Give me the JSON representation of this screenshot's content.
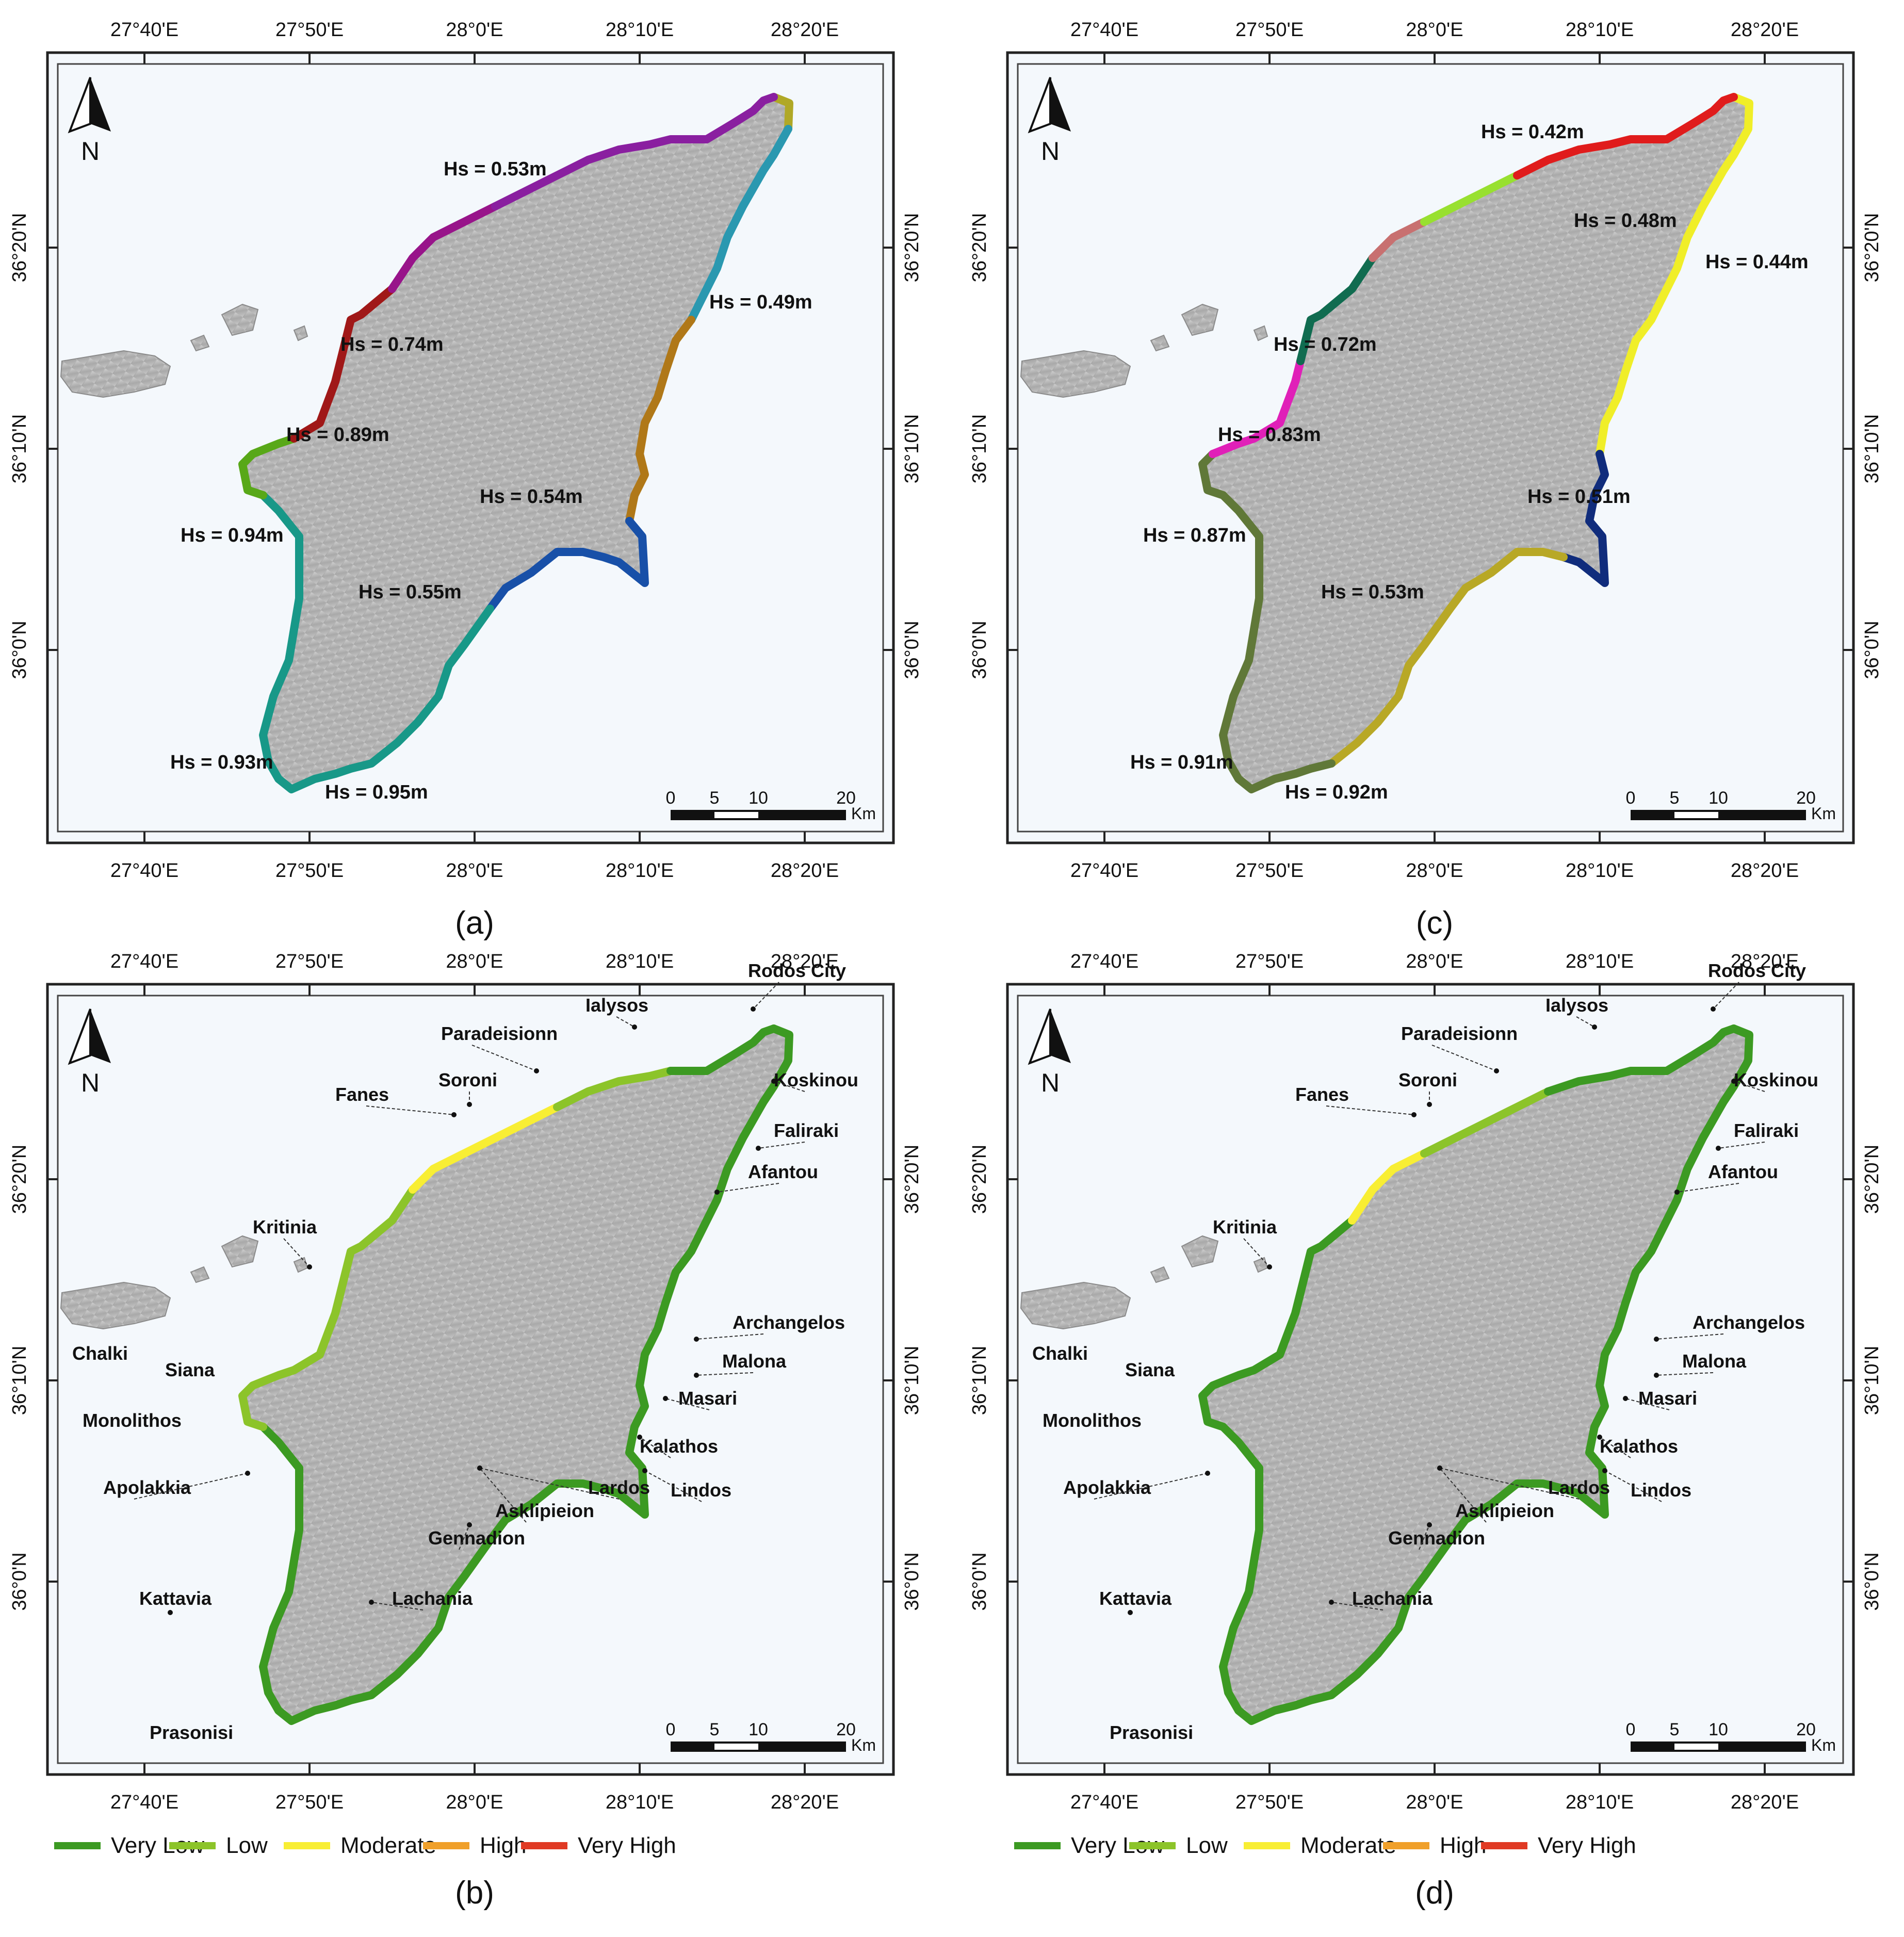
{
  "lon_ticks": [
    "27°40'E",
    "27°50'E",
    "28°0'E",
    "28°10'E",
    "28°20'E"
  ],
  "lat_ticks": [
    "36°20'N",
    "36°10'N",
    "36°0'N"
  ],
  "north_label": "N",
  "scale_bar": {
    "ticks": [
      "0",
      "5",
      "10",
      "20"
    ],
    "unit": "Km"
  },
  "panels": [
    {
      "id": "a",
      "label": "(a)",
      "hs_labels": [
        "Hs = 0.53m",
        "Hs = 0.49m",
        "Hs = 0.74m",
        "Hs = 0.89m",
        "Hs = 0.54m",
        "Hs = 0.94m",
        "Hs = 0.55m",
        "Hs = 0.93m",
        "Hs = 0.95m"
      ],
      "segment_colors": [
        "#b0a826",
        "#2a98b0",
        "#8a1fa0",
        "#98148a",
        "#b07818",
        "#a01818",
        "#1850a8",
        "#189888",
        "#58a818"
      ]
    },
    {
      "id": "c",
      "label": "(c)",
      "hs_labels": [
        "Hs = 0.42m",
        "Hs = 0.48m",
        "Hs = 0.44m",
        "Hs = 0.72m",
        "Hs = 0.83m",
        "Hs = 0.51m",
        "Hs = 0.87m",
        "Hs = 0.53m",
        "Hs = 0.91m",
        "Hs = 0.92m"
      ],
      "segment_colors": [
        "#5a1010",
        "#e01c1c",
        "#f0ee28",
        "#98e030",
        "#c87070",
        "#102c7c",
        "#106c50",
        "#b8a826",
        "#e020b8",
        "#607838"
      ]
    },
    {
      "id": "b",
      "label": "(b)",
      "places": [
        "Rodos City",
        "Ialysos",
        "Paradeisionn",
        "Koskinou",
        "Soroni",
        "Fanes",
        "Faliraki",
        "Afantou",
        "Kritinia",
        "Archangelos",
        "Chalki",
        "Malona",
        "Siana",
        "Masari",
        "Monolithos",
        "Kalathos",
        "Lindos",
        "Apolakkia",
        "Lardos",
        "Asklipieion",
        "Gennadion",
        "Kattavia",
        "Lachania",
        "Prasonisi"
      ],
      "legend": [
        "Very Low",
        "Low",
        "Moderate",
        "High",
        "Very High"
      ]
    },
    {
      "id": "d",
      "label": "(d)",
      "places": [
        "Rodos City",
        "Ialysos",
        "Paradeisionn",
        "Koskinou",
        "Soroni",
        "Fanes",
        "Faliraki",
        "Afantou",
        "Kritinia",
        "Archangelos",
        "Chalki",
        "Malona",
        "Siana",
        "Masari",
        "Monolithos",
        "Kalathos",
        "Lindos",
        "Apolakkia",
        "Lardos",
        "Asklipieion",
        "Gennadion",
        "Kattavia",
        "Lachania",
        "Prasonisi"
      ],
      "legend": [
        "Very Low",
        "Low",
        "Moderate",
        "High",
        "Very High"
      ]
    }
  ],
  "legend_colors": [
    "#3c9a22",
    "#8cc42a",
    "#f8ee34",
    "#f0a02a",
    "#e03a24"
  ],
  "colors": {
    "map_bg": "#f4f8fc",
    "island": "#b8b8b8",
    "frame": "#222222"
  }
}
